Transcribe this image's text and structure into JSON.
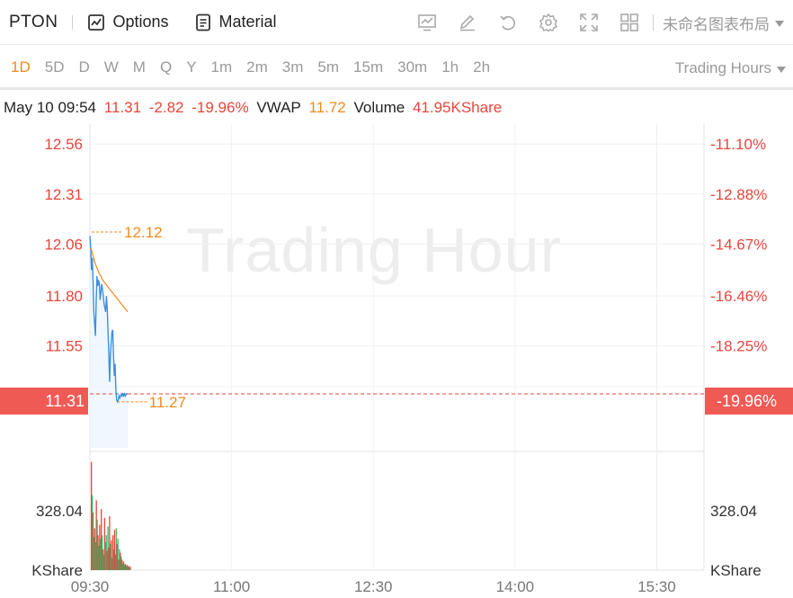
{
  "toolbar": {
    "ticker": "PTON",
    "options_label": "Options",
    "material_label": "Material",
    "layout_name": "未命名图表布局",
    "icons": [
      "indicator-chart-icon",
      "draw-pen-icon",
      "undo-icon",
      "gear-icon",
      "fullscreen-icon",
      "grid-layout-icon"
    ]
  },
  "periods": {
    "items": [
      "1D",
      "5D",
      "D",
      "W",
      "M",
      "Q",
      "Y",
      "1m",
      "2m",
      "3m",
      "5m",
      "15m",
      "30m",
      "1h",
      "2h"
    ],
    "active": "1D",
    "trading_hours_label": "Trading Hours"
  },
  "quote": {
    "datetime": "May 10 09:54",
    "price": "11.31",
    "change": "-2.82",
    "change_pct": "-19.96%",
    "vwap_label": "VWAP",
    "vwap_value": "11.72",
    "volume_label": "Volume",
    "volume_value": "41.95KShare"
  },
  "chart": {
    "watermark": "Trading Hour",
    "current_price_label": "11.31",
    "current_pct_label": "-19.96%",
    "high_label": "12.12",
    "low_label": "11.27",
    "volume_axis_left": "328.04",
    "volume_axis_right": "328.04",
    "volume_unit_left": "KShare",
    "volume_unit_right": "KShare",
    "colors": {
      "up": "#e8453c",
      "down": "#37b36b",
      "price_line": "#3b8fe0",
      "vwap_line": "#f08a1c",
      "accent": "#f08a1c"
    }
  },
  "chart_data": {
    "type": "line",
    "y_left_ticks": [
      "12.56",
      "12.31",
      "12.06",
      "11.80",
      "11.55",
      "11.31"
    ],
    "y_right_ticks": [
      "-11.10%",
      "-12.88%",
      "-14.67%",
      "-16.46%",
      "-18.25%",
      "-19.96%"
    ],
    "x_ticks": [
      "09:30",
      "11:00",
      "12:30",
      "14:00",
      "15:30"
    ],
    "ylim": [
      11.04,
      12.66
    ],
    "session": [
      "09:30",
      "16:00"
    ],
    "price_series": {
      "minutes": [
        0,
        0.5,
        1,
        1.5,
        2,
        2.5,
        3,
        3.5,
        4,
        4.5,
        5,
        5.5,
        6,
        6.5,
        7,
        7.5,
        8,
        8.5,
        9,
        9.5,
        10,
        10.5,
        11,
        11.5,
        12,
        12.5,
        13,
        13.5,
        14,
        14.5,
        15,
        15.5,
        16,
        16.5,
        17,
        17.5,
        18,
        18.5,
        19,
        19.5,
        20,
        20.5,
        21,
        21.5,
        22,
        22.5,
        23,
        23.5,
        24
      ],
      "values": [
        12.1,
        12.04,
        11.93,
        11.99,
        11.88,
        11.72,
        11.66,
        11.6,
        11.78,
        11.9,
        11.85,
        11.88,
        11.86,
        11.78,
        11.82,
        11.86,
        11.83,
        11.8,
        11.76,
        11.74,
        11.72,
        11.8,
        11.74,
        11.62,
        11.52,
        11.37,
        11.5,
        11.57,
        11.62,
        11.63,
        11.5,
        11.4,
        11.46,
        11.33,
        11.28,
        11.27,
        11.28,
        11.3,
        11.29,
        11.3,
        11.31,
        11.3,
        11.31,
        11.3,
        11.31,
        11.3,
        11.31,
        11.31,
        11.31
      ]
    },
    "vwap_series": {
      "minutes": [
        0,
        1,
        2,
        3,
        4,
        5,
        6,
        7,
        8,
        9,
        10,
        11,
        12,
        13,
        14,
        15,
        16,
        17,
        18,
        19,
        20,
        21,
        22,
        23,
        24
      ],
      "values": [
        12.04,
        12.03,
        12.0,
        11.97,
        11.95,
        11.93,
        11.91,
        11.9,
        11.88,
        11.87,
        11.86,
        11.85,
        11.84,
        11.83,
        11.82,
        11.81,
        11.8,
        11.79,
        11.78,
        11.77,
        11.76,
        11.75,
        11.74,
        11.73,
        11.72
      ]
    },
    "volume": {
      "unit": "KShare",
      "max_tick": 328.04,
      "values": [
        620,
        430,
        330,
        190,
        240,
        160,
        400,
        290,
        200,
        140,
        260,
        180,
        350,
        200,
        120,
        90,
        300,
        160,
        200,
        110,
        250,
        130,
        310,
        150,
        170,
        70,
        200,
        120,
        230,
        90,
        240,
        150,
        180,
        60,
        120,
        100,
        80,
        60,
        40,
        50,
        30,
        35,
        25,
        30,
        20,
        25,
        15,
        20
      ],
      "up": [
        1,
        0,
        1,
        0,
        1,
        0,
        1,
        0,
        1,
        0,
        1,
        0,
        1,
        0,
        1,
        0,
        1,
        0,
        0,
        1,
        0,
        1,
        1,
        0,
        1,
        0,
        1,
        0,
        1,
        1,
        0,
        1,
        0,
        1,
        0,
        1,
        0,
        1,
        0,
        1,
        0,
        1,
        0,
        1,
        0,
        1,
        0,
        1
      ]
    }
  }
}
